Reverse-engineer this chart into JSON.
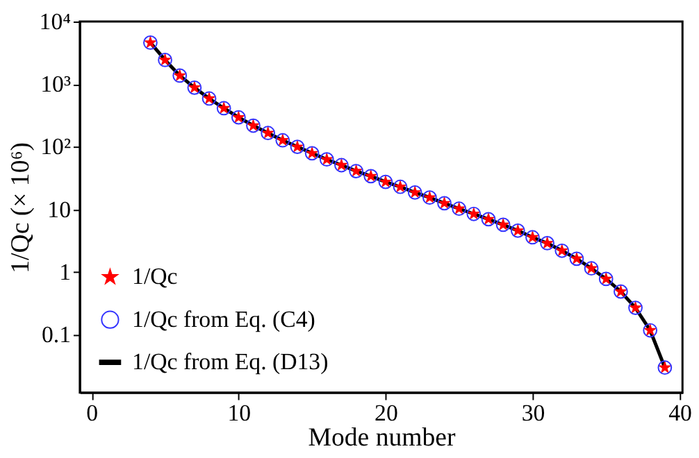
{
  "chart_data": {
    "type": "line",
    "xlabel": "Mode number",
    "ylabel": "1/Qc (× 10⁶)",
    "x": [
      4,
      5,
      6,
      7,
      8,
      9,
      10,
      11,
      12,
      13,
      14,
      15,
      16,
      17,
      18,
      19,
      20,
      21,
      22,
      23,
      24,
      25,
      26,
      27,
      28,
      29,
      30,
      31,
      32,
      33,
      34,
      35,
      36,
      37,
      38,
      39
    ],
    "series": [
      {
        "name": "1/Qc",
        "type": "scatter",
        "marker": "star",
        "color": "#ff0000",
        "values": [
          4600,
          2430,
          1370,
          880,
          590,
          413,
          295,
          218,
          166,
          127,
          100,
          79,
          63,
          51,
          41,
          34,
          27.6,
          23,
          18.7,
          15.5,
          12.6,
          10.3,
          8.5,
          7.0,
          5.7,
          4.6,
          3.6,
          2.9,
          2.2,
          1.64,
          1.15,
          0.78,
          0.49,
          0.27,
          0.118,
          0.03
        ]
      },
      {
        "name": "1/Qc from Eq. (C4)",
        "type": "scatter",
        "marker": "circle",
        "color": "#3333ff",
        "values": [
          4600,
          2430,
          1370,
          880,
          590,
          413,
          295,
          218,
          166,
          127,
          100,
          79,
          63,
          51,
          41,
          34,
          27.6,
          23,
          18.7,
          15.5,
          12.6,
          10.3,
          8.5,
          7.0,
          5.7,
          4.6,
          3.6,
          2.9,
          2.2,
          1.64,
          1.15,
          0.78,
          0.49,
          0.27,
          0.118,
          0.03
        ]
      },
      {
        "name": "1/Qc from Eq. (D13)",
        "type": "line",
        "marker": "none",
        "line_style": "solid",
        "color": "#000000",
        "values": [
          4600,
          2430,
          1370,
          880,
          590,
          413,
          295,
          218,
          166,
          127,
          100,
          79,
          63,
          51,
          41,
          34,
          27.6,
          23,
          18.7,
          15.5,
          12.6,
          10.3,
          8.5,
          7.0,
          5.7,
          4.6,
          3.6,
          2.9,
          2.2,
          1.64,
          1.15,
          0.78,
          0.49,
          0.27,
          0.118,
          0.03
        ]
      }
    ],
    "log": "y",
    "xlim": [
      -0.8,
      40.2
    ],
    "xticks": [
      0,
      10,
      20,
      30,
      40
    ],
    "ylim": [
      0.012,
      10000
    ],
    "yticks": [
      0.1,
      1,
      10,
      {
        "value": 100,
        "label": "10²"
      },
      {
        "value": 1000,
        "label": "10³"
      },
      {
        "value": 10000,
        "label": "10⁴"
      }
    ],
    "grid": false,
    "legend": "bottom left"
  }
}
